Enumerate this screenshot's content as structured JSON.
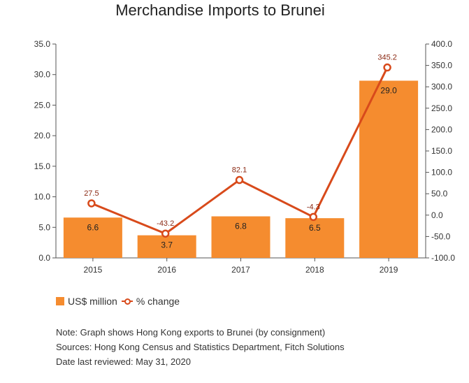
{
  "chart_data": {
    "type": "bar",
    "title": "Merchandise Imports to Brunei",
    "categories": [
      "2015",
      "2016",
      "2017",
      "2018",
      "2019"
    ],
    "series": [
      {
        "name": "US$ million",
        "type": "bar",
        "axis": "left",
        "values": [
          6.6,
          3.7,
          6.8,
          6.5,
          29.0
        ],
        "labels": [
          "6.6",
          "3.7",
          "6.8",
          "6.5",
          "29.0"
        ]
      },
      {
        "name": "% change",
        "type": "line",
        "axis": "right",
        "values": [
          27.5,
          -43.2,
          82.1,
          -4.3,
          345.2
        ],
        "labels": [
          "27.5",
          "-43.2",
          "82.1",
          "-4.3",
          "345.2"
        ]
      }
    ],
    "y_left": {
      "range": [
        0,
        35
      ],
      "ticks": [
        "0.0",
        "5.0",
        "10.0",
        "15.0",
        "20.0",
        "25.0",
        "30.0",
        "35.0"
      ]
    },
    "y_right": {
      "range": [
        -100,
        400
      ],
      "ticks": [
        "-100.0",
        "-50.0",
        "0.0",
        "50.0",
        "100.0",
        "150.0",
        "200.0",
        "250.0",
        "300.0",
        "350.0",
        "400.0"
      ]
    },
    "grid": false,
    "legend_position": "bottom-left"
  },
  "colors": {
    "bar": "#f58c2f",
    "line": "#d84a1b",
    "line_label": "#8b2a14",
    "axis": "#555555"
  },
  "notes": [
    "Note: Graph shows Hong Kong exports to Brunei (by consignment)",
    "Sources: Hong Kong Census and Statistics Department, Fitch Solutions",
    "Date last reviewed: May 31, 2020"
  ]
}
